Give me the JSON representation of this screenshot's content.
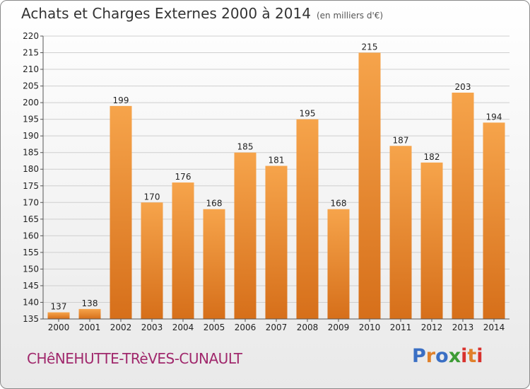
{
  "title": "Achats et Charges Externes 2000 à 2014",
  "unit_note": "(en milliers d'€)",
  "commune": "CHêNEHUTTE-TRèVES-CUNAULT",
  "logo": {
    "text": "Proxiti",
    "colors": [
      "#3a6fc4",
      "#e0812b",
      "#3d9b35",
      "#d8322e"
    ]
  },
  "colors": {
    "bar": "#f29a3f",
    "bar_dark": "#d9731d",
    "grid": "#cfcfcf",
    "text": "#222222"
  },
  "chart_data": {
    "type": "bar",
    "title": "Achats et Charges Externes 2000 à 2014",
    "xlabel": "",
    "ylabel": "",
    "categories": [
      "2000",
      "2001",
      "2002",
      "2003",
      "2004",
      "2005",
      "2006",
      "2007",
      "2008",
      "2009",
      "2010",
      "2011",
      "2012",
      "2013",
      "2014"
    ],
    "values": [
      137,
      138,
      199,
      170,
      176,
      168,
      185,
      181,
      195,
      168,
      215,
      187,
      182,
      203,
      194
    ],
    "ylim": [
      135,
      220
    ],
    "yticks": [
      135,
      140,
      145,
      150,
      155,
      160,
      165,
      170,
      175,
      180,
      185,
      190,
      195,
      200,
      205,
      210,
      215,
      220
    ],
    "grid": true,
    "data_labels": true
  }
}
